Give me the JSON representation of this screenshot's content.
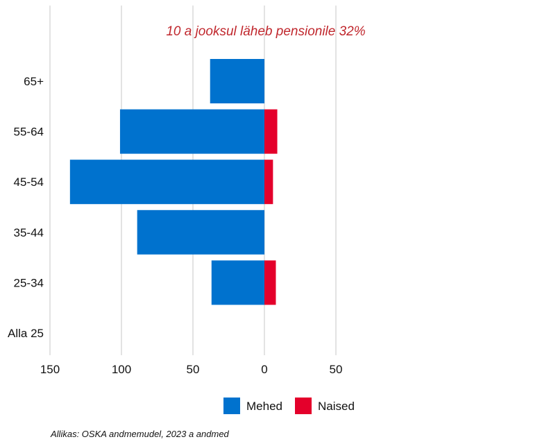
{
  "chart_data": {
    "type": "bar",
    "orientation": "horizontal",
    "stacking": "diverging",
    "categories": [
      "Alla 25",
      "25-34",
      "35-44",
      "45-54",
      "55-64",
      "65+"
    ],
    "series": [
      {
        "name": "Mehed",
        "color": "#0072CE",
        "values": [
          0,
          -37,
          -89,
          -136,
          -101,
          -38
        ]
      },
      {
        "name": "Naised",
        "color": "#E4002B",
        "values": [
          0,
          8,
          0,
          6,
          9,
          0
        ]
      }
    ],
    "annotation": "10 a jooksul läheb pensionile 32%",
    "annotation_color": "#C0272D",
    "x_ticks": [
      -150,
      -100,
      -50,
      0,
      50
    ],
    "x_tick_labels": [
      "150",
      "100",
      "50",
      "0",
      "50"
    ],
    "xlim": [
      -150,
      50
    ],
    "grid": true,
    "legend_position": "bottom",
    "source": "Allikas: OSKA andmemudel, 2023 a andmed"
  }
}
